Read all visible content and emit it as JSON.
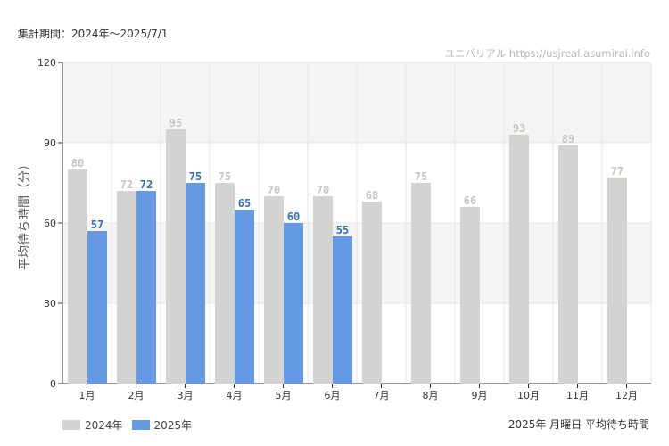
{
  "header": {
    "period": "集計期間：2024年～2025/7/1",
    "watermark": "ユニバリアル https://usjreal.asumirai.info"
  },
  "footer": {
    "subtitle": "2025年 月曜日 平均待ち時間"
  },
  "colors": {
    "series_2024": "#d3d3d2",
    "series_2025": "#6699e3",
    "band": "#f4f4f4",
    "grid": "#e6e6e6"
  },
  "chart_data": {
    "type": "bar",
    "ylabel": "平均待ち時間（分）",
    "ylim": [
      0,
      120
    ],
    "yticks": [
      0,
      30,
      60,
      90,
      120
    ],
    "categories": [
      "1月",
      "2月",
      "3月",
      "4月",
      "5月",
      "6月",
      "7月",
      "8月",
      "9月",
      "10月",
      "11月",
      "12月"
    ],
    "series": [
      {
        "name": "2024年",
        "values": [
          80,
          72,
          95,
          75,
          70,
          70,
          68,
          75,
          66,
          93,
          89,
          77
        ]
      },
      {
        "name": "2025年",
        "values": [
          57,
          72,
          75,
          65,
          60,
          55,
          null,
          null,
          null,
          null,
          null,
          null
        ]
      }
    ],
    "legend": "bottom-left"
  }
}
